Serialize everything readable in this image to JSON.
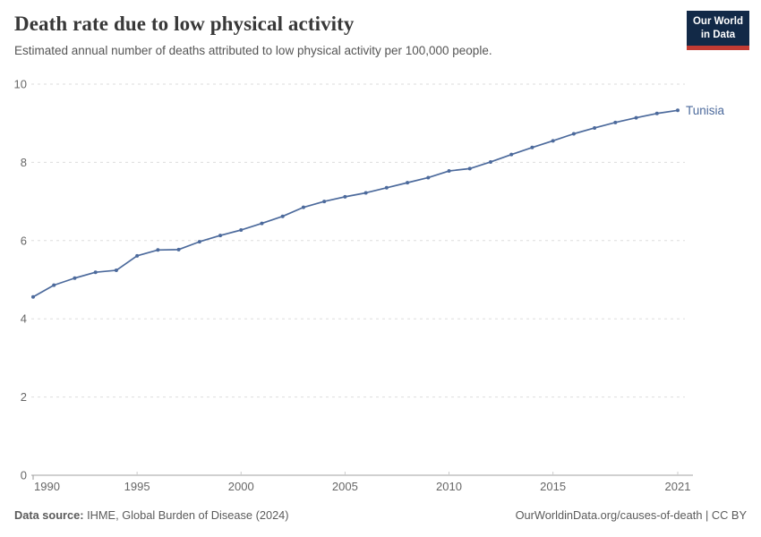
{
  "header": {
    "title": "Death rate due to low physical activity",
    "subtitle": "Estimated annual number of deaths attributed to low physical activity per 100,000 people."
  },
  "logo": {
    "line1": "Our World",
    "line2": "in Data",
    "bg_color": "#122947",
    "bar_color": "#c23b33"
  },
  "chart_data": {
    "type": "line",
    "title": "Death rate due to low physical activity",
    "subtitle": "Estimated annual number of deaths attributed to low physical activity per 100,000 people.",
    "x": [
      1990,
      1991,
      1992,
      1993,
      1994,
      1995,
      1996,
      1997,
      1998,
      1999,
      2000,
      2001,
      2002,
      2003,
      2004,
      2005,
      2006,
      2007,
      2008,
      2009,
      2010,
      2011,
      2012,
      2013,
      2014,
      2015,
      2016,
      2017,
      2018,
      2019,
      2020,
      2021
    ],
    "series": [
      {
        "name": "Tunisia",
        "color": "#4c6a9c",
        "values": [
          4.56,
          4.86,
          5.04,
          5.19,
          5.24,
          5.61,
          5.76,
          5.77,
          5.97,
          6.13,
          6.27,
          6.44,
          6.62,
          6.85,
          7.0,
          7.12,
          7.22,
          7.35,
          7.48,
          7.61,
          7.78,
          7.84,
          8.01,
          8.2,
          8.38,
          8.55,
          8.73,
          8.88,
          9.02,
          9.14,
          9.25,
          9.33
        ]
      }
    ],
    "xlabel": "",
    "ylabel": "",
    "ylim": [
      0,
      10
    ],
    "yticks": [
      0,
      2,
      4,
      6,
      8,
      10
    ],
    "xticks": [
      1990,
      1995,
      2000,
      2005,
      2010,
      2015,
      2021
    ],
    "grid": "horizontal-dashed",
    "legend_position": "end-of-line",
    "colors": {
      "grid": "#dddddd",
      "axis": "#a1a1a1",
      "tick_mark": "#cccccc",
      "tick_text": "#666666"
    }
  },
  "footer": {
    "source_label": "Data source:",
    "source_text": " IHME, Global Burden of Disease (2024)",
    "credit_text": "OurWorldinData.org/causes-of-death | CC BY"
  }
}
